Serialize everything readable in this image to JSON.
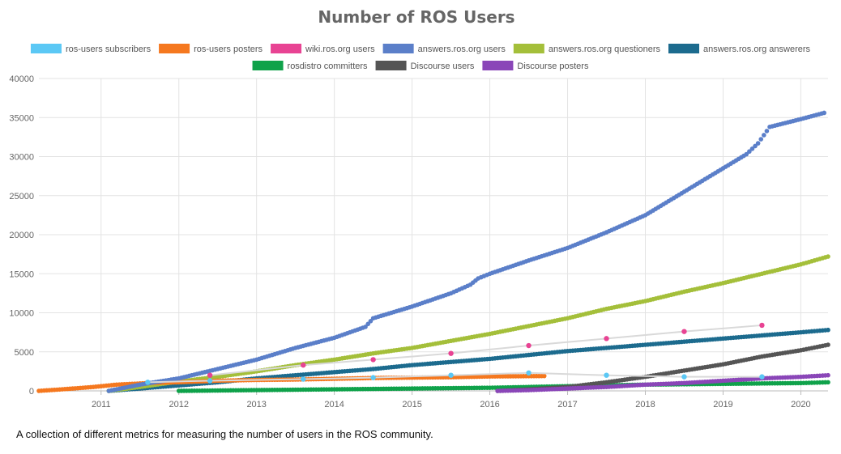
{
  "caption": "A collection of different metrics for measuring the number of users in the ROS community.",
  "chart_data": {
    "type": "scatter",
    "title": "Number of ROS Users",
    "xlabel": "",
    "ylabel": "",
    "xlim": [
      2010.2,
      2020.35
    ],
    "ylim": [
      0,
      40000
    ],
    "x_ticks": [
      "2011",
      "2012",
      "2013",
      "2014",
      "2015",
      "2016",
      "2017",
      "2018",
      "2019",
      "2020"
    ],
    "y_ticks": [
      "0",
      "5000",
      "10000",
      "15000",
      "20000",
      "25000",
      "30000",
      "35000",
      "40000"
    ],
    "grid": true,
    "legend_position": "top",
    "series": [
      {
        "name": "ros-users subscribers",
        "color": "#5bc8f5",
        "style": "sparse",
        "x": [
          2011.6,
          2012.4,
          2013.6,
          2014.5,
          2015.5,
          2016.5,
          2017.5,
          2018.5,
          2019.5
        ],
        "y": [
          1100,
          1300,
          1500,
          1700,
          2000,
          2300,
          2000,
          1800,
          1800
        ]
      },
      {
        "name": "ros-users posters",
        "color": "#f5781f",
        "style": "dense",
        "x": [
          2010.2,
          2010.5,
          2010.9,
          2011.2,
          2011.6,
          2012.0,
          2012.5,
          2013.0,
          2013.5,
          2014.0,
          2014.5,
          2015.0,
          2015.5,
          2016.0,
          2016.7
        ],
        "y": [
          0,
          200,
          500,
          800,
          1000,
          1100,
          1300,
          1400,
          1450,
          1550,
          1650,
          1700,
          1750,
          1850,
          1900
        ]
      },
      {
        "name": "wiki.ros.org users",
        "color": "#e84393",
        "style": "sparse",
        "x": [
          2012.4,
          2013.6,
          2014.5,
          2015.5,
          2016.5,
          2017.5,
          2018.5,
          2019.5
        ],
        "y": [
          2000,
          3300,
          4000,
          4800,
          5800,
          6700,
          7600,
          8400
        ]
      },
      {
        "name": "answers.ros.org users",
        "color": "#5b7fc9",
        "style": "dense",
        "x": [
          2011.1,
          2011.5,
          2012.0,
          2012.5,
          2013.0,
          2013.5,
          2014.0,
          2014.4,
          2014.5,
          2015.0,
          2015.5,
          2015.75,
          2015.85,
          2016.0,
          2016.5,
          2017.0,
          2017.5,
          2018.0,
          2018.5,
          2019.0,
          2019.3,
          2019.45,
          2019.6,
          2020.0,
          2020.3
        ],
        "y": [
          0,
          800,
          1600,
          2800,
          4000,
          5500,
          6800,
          8200,
          9300,
          10800,
          12500,
          13600,
          14400,
          15000,
          16700,
          18300,
          20300,
          22500,
          25500,
          28500,
          30300,
          31700,
          33800,
          34800,
          35600
        ]
      },
      {
        "name": "answers.ros.org questioners",
        "color": "#a4bf3a",
        "style": "dense",
        "x": [
          2011.1,
          2011.5,
          2012.0,
          2012.5,
          2013.0,
          2013.5,
          2014.0,
          2014.5,
          2015.0,
          2015.5,
          2016.0,
          2016.5,
          2017.0,
          2017.5,
          2018.0,
          2018.5,
          2019.0,
          2019.5,
          2020.0,
          2020.35
        ],
        "y": [
          0,
          500,
          1200,
          1800,
          2500,
          3300,
          4000,
          4800,
          5500,
          6400,
          7300,
          8300,
          9300,
          10500,
          11500,
          12700,
          13800,
          15000,
          16200,
          17200
        ]
      },
      {
        "name": "answers.ros.org answerers",
        "color": "#1c6b8e",
        "style": "dense",
        "x": [
          2011.1,
          2011.5,
          2012.0,
          2012.5,
          2013.0,
          2013.5,
          2014.0,
          2014.5,
          2015.0,
          2015.5,
          2016.0,
          2016.5,
          2017.0,
          2017.5,
          2018.0,
          2018.5,
          2019.0,
          2019.5,
          2020.0,
          2020.35
        ],
        "y": [
          0,
          300,
          700,
          1100,
          1600,
          2000,
          2400,
          2800,
          3300,
          3700,
          4100,
          4600,
          5100,
          5500,
          5900,
          6300,
          6700,
          7100,
          7500,
          7800
        ]
      },
      {
        "name": "rosdistro committers",
        "color": "#0fa24a",
        "style": "dense",
        "x": [
          2012.0,
          2013.0,
          2014.0,
          2015.0,
          2016.0,
          2017.0,
          2018.0,
          2019.0,
          2020.0,
          2020.35
        ],
        "y": [
          0,
          100,
          200,
          300,
          400,
          600,
          800,
          900,
          1000,
          1100
        ]
      },
      {
        "name": "Discourse users",
        "color": "#555555",
        "style": "dense",
        "x": [
          2016.1,
          2016.5,
          2017.0,
          2017.5,
          2018.0,
          2018.5,
          2019.0,
          2019.5,
          2020.0,
          2020.35
        ],
        "y": [
          0,
          200,
          500,
          1100,
          1800,
          2600,
          3400,
          4400,
          5200,
          5900
        ]
      },
      {
        "name": "Discourse posters",
        "color": "#8a46b8",
        "style": "dense",
        "x": [
          2016.1,
          2016.5,
          2017.0,
          2017.5,
          2018.0,
          2018.5,
          2019.0,
          2019.5,
          2020.0,
          2020.35
        ],
        "y": [
          0,
          100,
          300,
          500,
          800,
          1000,
          1300,
          1600,
          1800,
          2000
        ]
      }
    ]
  }
}
